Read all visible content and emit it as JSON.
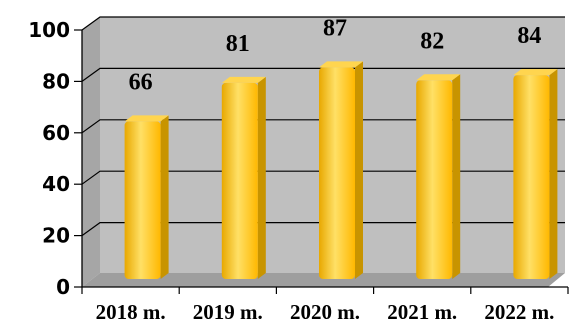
{
  "chart_data": {
    "type": "bar",
    "title": "",
    "xlabel": "",
    "ylabel": "",
    "categories": [
      "2018 m.",
      "2019 m.",
      "2020 m.",
      "2021 m.",
      "2022 m."
    ],
    "values": [
      66,
      81,
      87,
      82,
      84
    ],
    "data_labels": [
      "66",
      "81",
      "87",
      "82",
      "84"
    ],
    "yticks": [
      "0",
      "20",
      "40",
      "60",
      "80",
      "100"
    ],
    "ylim": [
      0,
      100
    ],
    "grid": true,
    "legend": "none",
    "colors": {
      "bar_front": "#FFC000",
      "bar_highlight": "#FFE066",
      "bar_side": "#C89400",
      "bar_top": "#FFD54F",
      "plot_back": "#BFBFBF",
      "plot_floor": "#9E9E9E",
      "plot_side": "#A6A6A6"
    }
  }
}
